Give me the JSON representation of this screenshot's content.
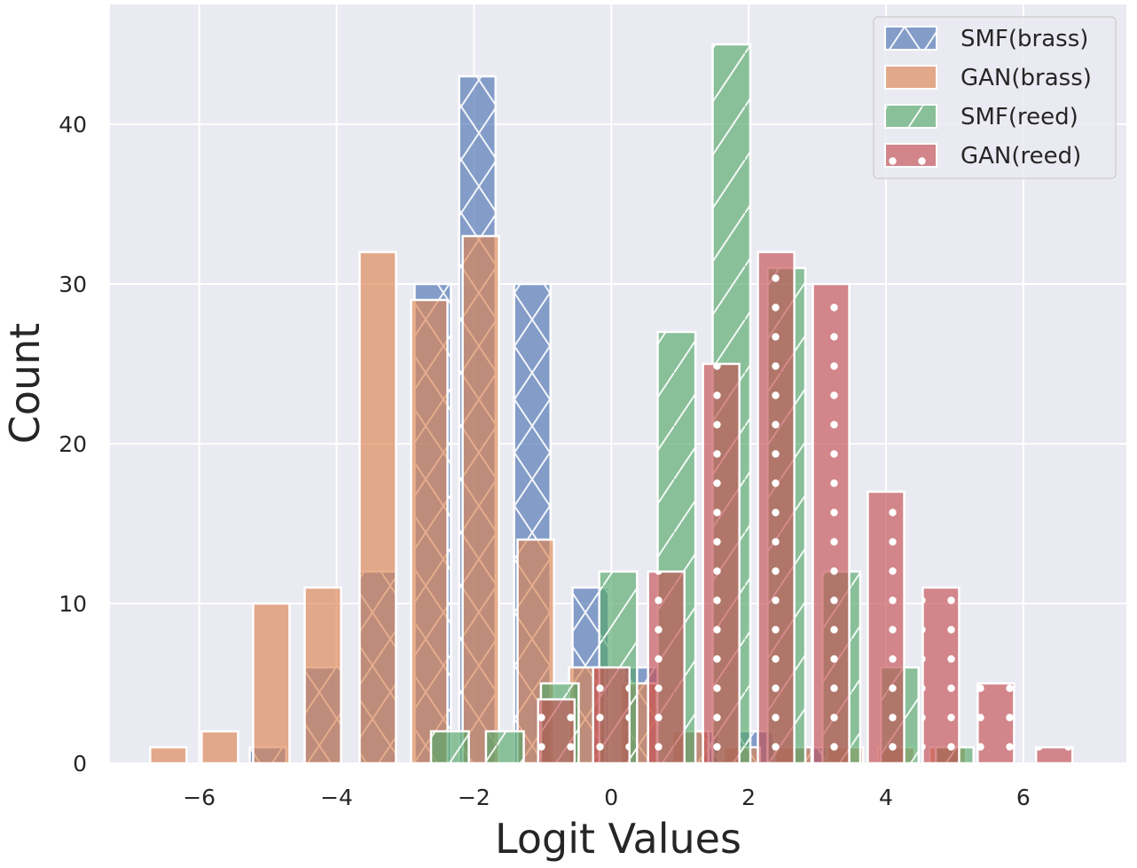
{
  "chart_data": {
    "type": "bar",
    "subtype": "overlaid-histogram",
    "title": "",
    "xlabel": "Logit Values",
    "ylabel": "Count",
    "xlim": [
      -7.3,
      7.5
    ],
    "ylim": [
      0,
      47.5
    ],
    "xticks": [
      -6,
      -4,
      -2,
      0,
      2,
      4,
      6
    ],
    "xtick_labels": [
      "−6",
      "−4",
      "−2",
      "0",
      "2",
      "4",
      "6"
    ],
    "yticks": [
      0,
      10,
      20,
      30,
      40
    ],
    "ytick_labels": [
      "0",
      "10",
      "20",
      "30",
      "40"
    ],
    "grid": true,
    "legend_position": "top-right",
    "series": [
      {
        "name": "SMF(brass)",
        "color": "#4c72b0",
        "pattern": "cross-hatch",
        "bin_width": 0.53,
        "centers": [
          -5.0,
          -4.2,
          -3.4,
          -2.6,
          -1.95,
          -1.15,
          -0.3,
          0.45,
          1.3,
          2.1,
          2.9
        ],
        "values": [
          1,
          6,
          12,
          30,
          43,
          30,
          11,
          6,
          2,
          2,
          1
        ]
      },
      {
        "name": "GAN(brass)",
        "color": "#dd8452",
        "pattern": "none",
        "bin_width": 0.53,
        "centers": [
          -6.45,
          -5.7,
          -4.95,
          -4.2,
          -3.4,
          -2.65,
          -1.9,
          -1.1,
          -0.35,
          0.4,
          1.15,
          1.9,
          2.65,
          3.4,
          4.15,
          4.9
        ],
        "values": [
          1,
          2,
          10,
          11,
          32,
          29,
          33,
          14,
          6,
          5,
          2,
          1,
          1,
          1,
          1,
          1
        ]
      },
      {
        "name": "SMF(reed)",
        "color": "#55a868",
        "pattern": "diagonal",
        "bin_width": 0.55,
        "centers": [
          -2.35,
          -1.55,
          -0.75,
          0.1,
          0.95,
          1.75,
          2.55,
          3.35,
          4.2,
          5.0
        ],
        "values": [
          2,
          2,
          5,
          12,
          27,
          45,
          31,
          12,
          6,
          1
        ]
      },
      {
        "name": "GAN(reed)",
        "color": "#c44e52",
        "pattern": "dots",
        "bin_width": 0.53,
        "centers": [
          -0.8,
          0.0,
          0.8,
          1.6,
          2.4,
          3.2,
          4.0,
          4.8,
          5.6,
          6.45
        ],
        "values": [
          4,
          6,
          12,
          25,
          32,
          30,
          17,
          11,
          5,
          1
        ]
      }
    ]
  }
}
